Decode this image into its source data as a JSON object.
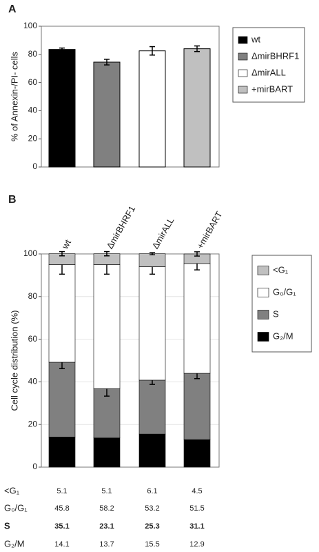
{
  "chart_data": [
    {
      "type": "bar",
      "panel": "A",
      "ylabel": "% of Annexin-/PI- cells",
      "categories": [
        "wt",
        "ΔmirBHRF1",
        "ΔmirALL",
        "+mirBART"
      ],
      "values": [
        83.5,
        74.5,
        82.5,
        84
      ],
      "errors": [
        1,
        2,
        3,
        2
      ],
      "colors": [
        "#000000",
        "#808080",
        "#ffffff",
        "#c0c0c0"
      ],
      "ylim": [
        0,
        100
      ],
      "yticks": [
        0,
        20,
        40,
        60,
        80,
        100
      ],
      "grid": false,
      "legend": "right"
    },
    {
      "type": "stacked_bar",
      "panel": "B",
      "ylabel": "Cell cycle distribution (%)",
      "categories": [
        "wt",
        "ΔmirBHRF1",
        "ΔmirALL",
        "+mirBART"
      ],
      "series": [
        {
          "name": "<G₁",
          "color": "#c0c0c0",
          "values": [
            5.1,
            5.1,
            6.1,
            4.5
          ],
          "errors": [
            1,
            1,
            0.5,
            1
          ]
        },
        {
          "name": "G₀/G₁",
          "color": "#ffffff",
          "values": [
            45.8,
            58.2,
            53.2,
            51.5
          ],
          "errors": [
            4.5,
            4.5,
            3.5,
            3
          ]
        },
        {
          "name": "S",
          "color": "#808080",
          "values": [
            35.1,
            23.1,
            25.3,
            31.1
          ],
          "errors": [
            3,
            3.5,
            2,
            2.5
          ],
          "bold": true
        },
        {
          "name": "G₂/M",
          "color": "#000000",
          "values": [
            14.1,
            13.7,
            15.5,
            12.9
          ],
          "errors": [
            1.5,
            1.5,
            1,
            1.5
          ]
        }
      ],
      "ylim": [
        0,
        100
      ],
      "yticks": [
        0,
        20,
        40,
        60,
        80,
        100
      ],
      "grid": true,
      "legend": "right"
    }
  ]
}
